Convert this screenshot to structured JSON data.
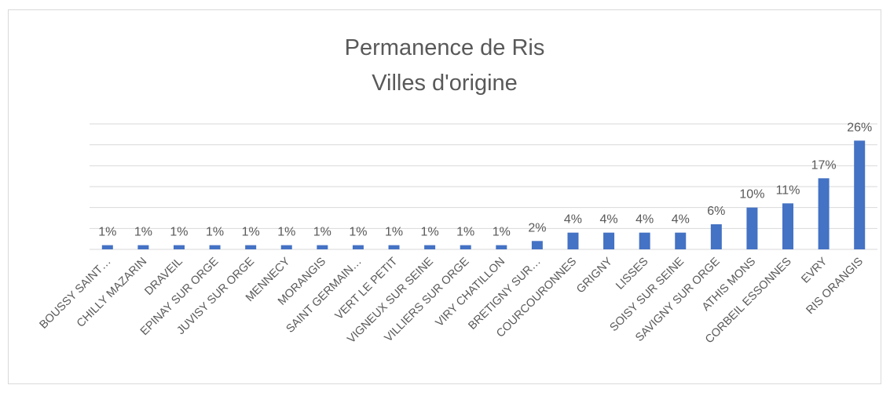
{
  "chart_data": {
    "type": "bar",
    "title": [
      "Permanence de Ris",
      "Villes d'origine"
    ],
    "categories": [
      "BOUSSY SAINT…",
      "CHILLY MAZARIN",
      "DRAVEIL",
      "EPINAY SUR ORGE",
      "JUVISY SUR ORGE",
      "MENNECY",
      "MORANGIS",
      "SAINT GERMAIN…",
      "VERT LE PETIT",
      "VIGNEUX SUR SEINE",
      "VILLIERS SUR ORGE",
      "VIRY CHATILLON",
      "BRETIGNY SUR…",
      "COURCOURONNES",
      "GRIGNY",
      "LISSES",
      "SOISY SUR SEINE",
      "SAVIGNY SUR ORGE",
      "ATHIS MONS",
      "CORBEIL ESSONNES",
      "EVRY",
      "RIS ORANGIS"
    ],
    "values": [
      1,
      1,
      1,
      1,
      1,
      1,
      1,
      1,
      1,
      1,
      1,
      1,
      2,
      4,
      4,
      4,
      4,
      6,
      10,
      11,
      17,
      26
    ],
    "value_labels": [
      "1%",
      "1%",
      "1%",
      "1%",
      "1%",
      "1%",
      "1%",
      "1%",
      "1%",
      "1%",
      "1%",
      "1%",
      "2%",
      "4%",
      "4%",
      "4%",
      "4%",
      "6%",
      "10%",
      "11%",
      "17%",
      "26%"
    ],
    "color": "#4472c4",
    "ylim": [
      0,
      30
    ],
    "yticks": [
      0,
      5,
      10,
      15,
      20,
      25,
      30
    ],
    "grid": true
  }
}
